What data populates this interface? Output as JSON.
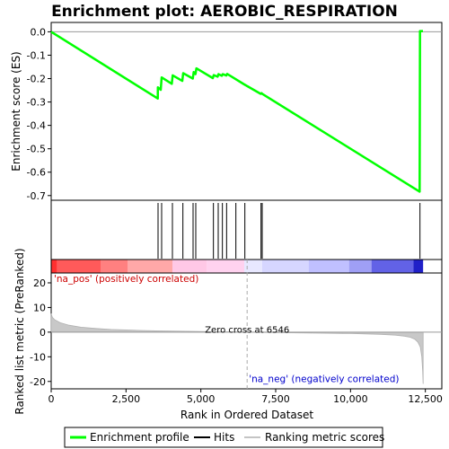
{
  "chart_data": {
    "type": "line",
    "title": "Enrichment plot: AEROBIC_RESPIRATION",
    "es_panel": {
      "ylabel": "Enrichment score (ES)",
      "ylim": [
        -0.72,
        0.04
      ],
      "yticks": [
        0.0,
        -0.1,
        -0.2,
        -0.3,
        -0.4,
        -0.5,
        -0.6,
        -0.7
      ],
      "ytick_labels": [
        "0.0",
        "-0.1",
        "-0.2",
        "-0.3",
        "-0.4",
        "-0.5",
        "-0.6",
        "-0.7"
      ],
      "zero_line": 0.0,
      "series": [
        {
          "name": "Enrichment profile",
          "color": "#00ff00",
          "points": [
            [
              0,
              0.0
            ],
            [
              3560,
              -0.285
            ],
            [
              3565,
              -0.237
            ],
            [
              3660,
              -0.248
            ],
            [
              3690,
              -0.195
            ],
            [
              4030,
              -0.222
            ],
            [
              4060,
              -0.186
            ],
            [
              4380,
              -0.21
            ],
            [
              4410,
              -0.177
            ],
            [
              4730,
              -0.2
            ],
            [
              4760,
              -0.172
            ],
            [
              4820,
              -0.181
            ],
            [
              4850,
              -0.156
            ],
            [
              5400,
              -0.198
            ],
            [
              5430,
              -0.185
            ],
            [
              5560,
              -0.192
            ],
            [
              5590,
              -0.181
            ],
            [
              5700,
              -0.188
            ],
            [
              5730,
              -0.181
            ],
            [
              5850,
              -0.187
            ],
            [
              5880,
              -0.18
            ],
            [
              6450,
              -0.225
            ],
            [
              7000,
              -0.265
            ],
            [
              7030,
              -0.262
            ],
            [
              7060,
              -0.266
            ],
            [
              12310,
              -0.683
            ],
            [
              12320,
              0.003
            ],
            [
              12420,
              0.003
            ]
          ]
        }
      ]
    },
    "hits": {
      "name": "Hits",
      "color": "#000000",
      "positions": [
        3570,
        3690,
        4050,
        4400,
        4740,
        4830,
        5420,
        5580,
        5720,
        5860,
        6170,
        6470,
        7010,
        7050,
        12320
      ]
    },
    "rank_panel": {
      "ylabel": "Ranked list metric (PreRanked)",
      "ylim": [
        -23,
        24
      ],
      "yticks": [
        20,
        10,
        0,
        -10,
        -20
      ],
      "ytick_labels": [
        "20",
        "10",
        "0",
        "-10",
        "-20"
      ],
      "series_name": "Ranking metric scores",
      "series_color": "#b0b0b0",
      "metric_curve": [
        [
          0,
          7.5
        ],
        [
          40,
          6.0
        ],
        [
          120,
          5.0
        ],
        [
          300,
          3.8
        ],
        [
          600,
          2.8
        ],
        [
          1000,
          2.0
        ],
        [
          1500,
          1.5
        ],
        [
          2000,
          1.1
        ],
        [
          2500,
          0.9
        ],
        [
          3000,
          0.7
        ],
        [
          3500,
          0.55
        ],
        [
          4000,
          0.45
        ],
        [
          4500,
          0.35
        ],
        [
          5000,
          0.25
        ],
        [
          5500,
          0.15
        ],
        [
          6000,
          0.07
        ],
        [
          6546,
          0.0
        ],
        [
          7000,
          -0.1
        ],
        [
          8000,
          -0.25
        ],
        [
          9000,
          -0.4
        ],
        [
          10000,
          -0.55
        ],
        [
          10500,
          -0.7
        ],
        [
          11000,
          -0.9
        ],
        [
          11500,
          -1.2
        ],
        [
          11800,
          -1.6
        ],
        [
          12000,
          -2.1
        ],
        [
          12150,
          -2.9
        ],
        [
          12250,
          -4.0
        ],
        [
          12330,
          -6.0
        ],
        [
          12380,
          -10.0
        ],
        [
          12410,
          -16.0
        ],
        [
          12425,
          -21.0
        ]
      ],
      "zero_cross_label": "Zero cross at 6546",
      "zero_cross": 6546,
      "pos_label": "'na_pos' (positively correlated)",
      "neg_label": "'na_neg' (negatively correlated)",
      "pos_label_color": "#cc0000",
      "neg_label_color": "#0000cc"
    },
    "heat_bar": {
      "segments": [
        [
          0,
          200,
          "#ff3030"
        ],
        [
          200,
          1650,
          "#ff5a5a"
        ],
        [
          1650,
          2550,
          "#ff8080"
        ],
        [
          2550,
          4050,
          "#ffa8a8"
        ],
        [
          4050,
          5200,
          "#ffc8e6"
        ],
        [
          5200,
          6450,
          "#ffd2ef"
        ],
        [
          6450,
          7050,
          "#e8e8ff"
        ],
        [
          7050,
          8600,
          "#d6d6ff"
        ],
        [
          8600,
          9950,
          "#c0c0ff"
        ],
        [
          9950,
          10700,
          "#9f9ff5"
        ],
        [
          10700,
          12100,
          "#6262e6"
        ],
        [
          12100,
          12425,
          "#2020c8"
        ]
      ]
    },
    "xaxis": {
      "label": "Rank in Ordered Dataset",
      "xlim": [
        0,
        13050
      ],
      "ticks": [
        0,
        2500,
        5000,
        7500,
        10000,
        12500
      ],
      "tick_labels": [
        "0",
        "2,500",
        "5,000",
        "7,500",
        "10,000",
        "12,500"
      ]
    },
    "legend": {
      "placement": "bottom",
      "entries": [
        {
          "label": "Enrichment profile",
          "color": "#00ff00"
        },
        {
          "label": "Hits",
          "color": "#000000"
        },
        {
          "label": "Ranking metric scores",
          "color": "#b0b0b0"
        }
      ]
    }
  }
}
